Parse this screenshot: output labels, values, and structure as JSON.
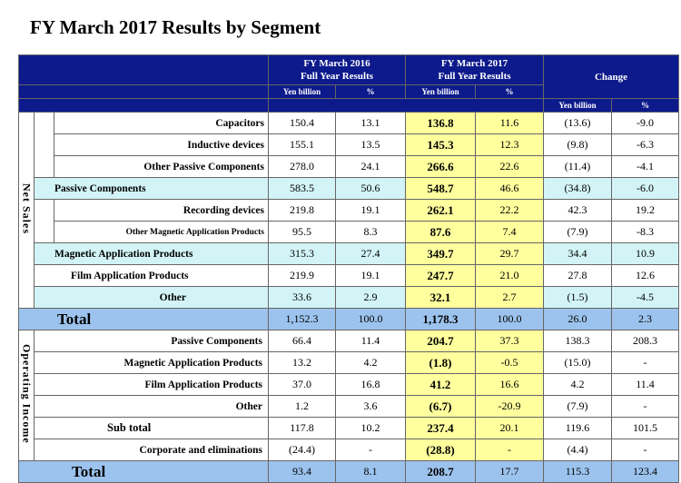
{
  "title": "FY March 2017 Results by Segment",
  "headers": {
    "fy2016": [
      "FY March 2016",
      "Full Year Results"
    ],
    "fy2017": [
      "FY March 2017",
      "Full Year Results"
    ],
    "change": "Change",
    "units": [
      "Yen billion",
      "%",
      "Yen billion",
      "%",
      "Yen billion",
      "%"
    ]
  },
  "sections": {
    "net_sales": "Net Sales",
    "operating_income": "Operating Income"
  },
  "rows": [
    {
      "label": "Capacitors",
      "v2016": "150.4",
      "p2016": "13.1",
      "v2017": "136.8",
      "p2017": "11.6",
      "chg": "(13.6)",
      "chgp": "-9.0"
    },
    {
      "label": "Inductive devices",
      "v2016": "155.1",
      "p2016": "13.5",
      "v2017": "145.3",
      "p2017": "12.3",
      "chg": "(9.8)",
      "chgp": "-6.3"
    },
    {
      "label": "Other Passive Components",
      "v2016": "278.0",
      "p2016": "24.1",
      "v2017": "266.6",
      "p2017": "22.6",
      "chg": "(11.4)",
      "chgp": "-4.1"
    },
    {
      "label": "Passive Components",
      "v2016": "583.5",
      "p2016": "50.6",
      "v2017": "548.7",
      "p2017": "46.6",
      "chg": "(34.8)",
      "chgp": "-6.0"
    },
    {
      "label": "Recording devices",
      "v2016": "219.8",
      "p2016": "19.1",
      "v2017": "262.1",
      "p2017": "22.2",
      "chg": "42.3",
      "chgp": "19.2"
    },
    {
      "label": "Other Magnetic Application Products",
      "v2016": "95.5",
      "p2016": "8.3",
      "v2017": "87.6",
      "p2017": "7.4",
      "chg": "(7.9)",
      "chgp": "-8.3"
    },
    {
      "label": "Magnetic Application Products",
      "v2016": "315.3",
      "p2016": "27.4",
      "v2017": "349.7",
      "p2017": "29.7",
      "chg": "34.4",
      "chgp": "10.9"
    },
    {
      "label": "Film Application Products",
      "v2016": "219.9",
      "p2016": "19.1",
      "v2017": "247.7",
      "p2017": "21.0",
      "chg": "27.8",
      "chgp": "12.6"
    },
    {
      "label": "Other",
      "v2016": "33.6",
      "p2016": "2.9",
      "v2017": "32.1",
      "p2017": "2.7",
      "chg": "(1.5)",
      "chgp": "-4.5"
    },
    {
      "label": "Total",
      "v2016": "1,152.3",
      "p2016": "100.0",
      "v2017": "1,178.3",
      "p2017": "100.0",
      "chg": "26.0",
      "chgp": "2.3"
    },
    {
      "label": "Passive Components",
      "v2016": "66.4",
      "p2016": "11.4",
      "v2017": "204.7",
      "p2017": "37.3",
      "chg": "138.3",
      "chgp": "208.3"
    },
    {
      "label": "Magnetic Application Products",
      "v2016": "13.2",
      "p2016": "4.2",
      "v2017": "(1.8)",
      "p2017": "-0.5",
      "chg": "(15.0)",
      "chgp": "-"
    },
    {
      "label": "Film Application Products",
      "v2016": "37.0",
      "p2016": "16.8",
      "v2017": "41.2",
      "p2017": "16.6",
      "chg": "4.2",
      "chgp": "11.4"
    },
    {
      "label": "Other",
      "v2016": "1.2",
      "p2016": "3.6",
      "v2017": "(6.7)",
      "p2017": "-20.9",
      "chg": "(7.9)",
      "chgp": "-"
    },
    {
      "label": "Sub total",
      "v2016": "117.8",
      "p2016": "10.2",
      "v2017": "237.4",
      "p2017": "20.1",
      "chg": "119.6",
      "chgp": "101.5"
    },
    {
      "label": "Corporate and eliminations",
      "v2016": "(24.4)",
      "p2016": "-",
      "v2017": "(28.8)",
      "p2017": "-",
      "chg": "(4.4)",
      "chgp": "-"
    },
    {
      "label": "Total",
      "v2016": "93.4",
      "p2016": "8.1",
      "v2017": "208.7",
      "p2017": "17.7",
      "chg": "115.3",
      "chgp": "123.4"
    }
  ]
}
